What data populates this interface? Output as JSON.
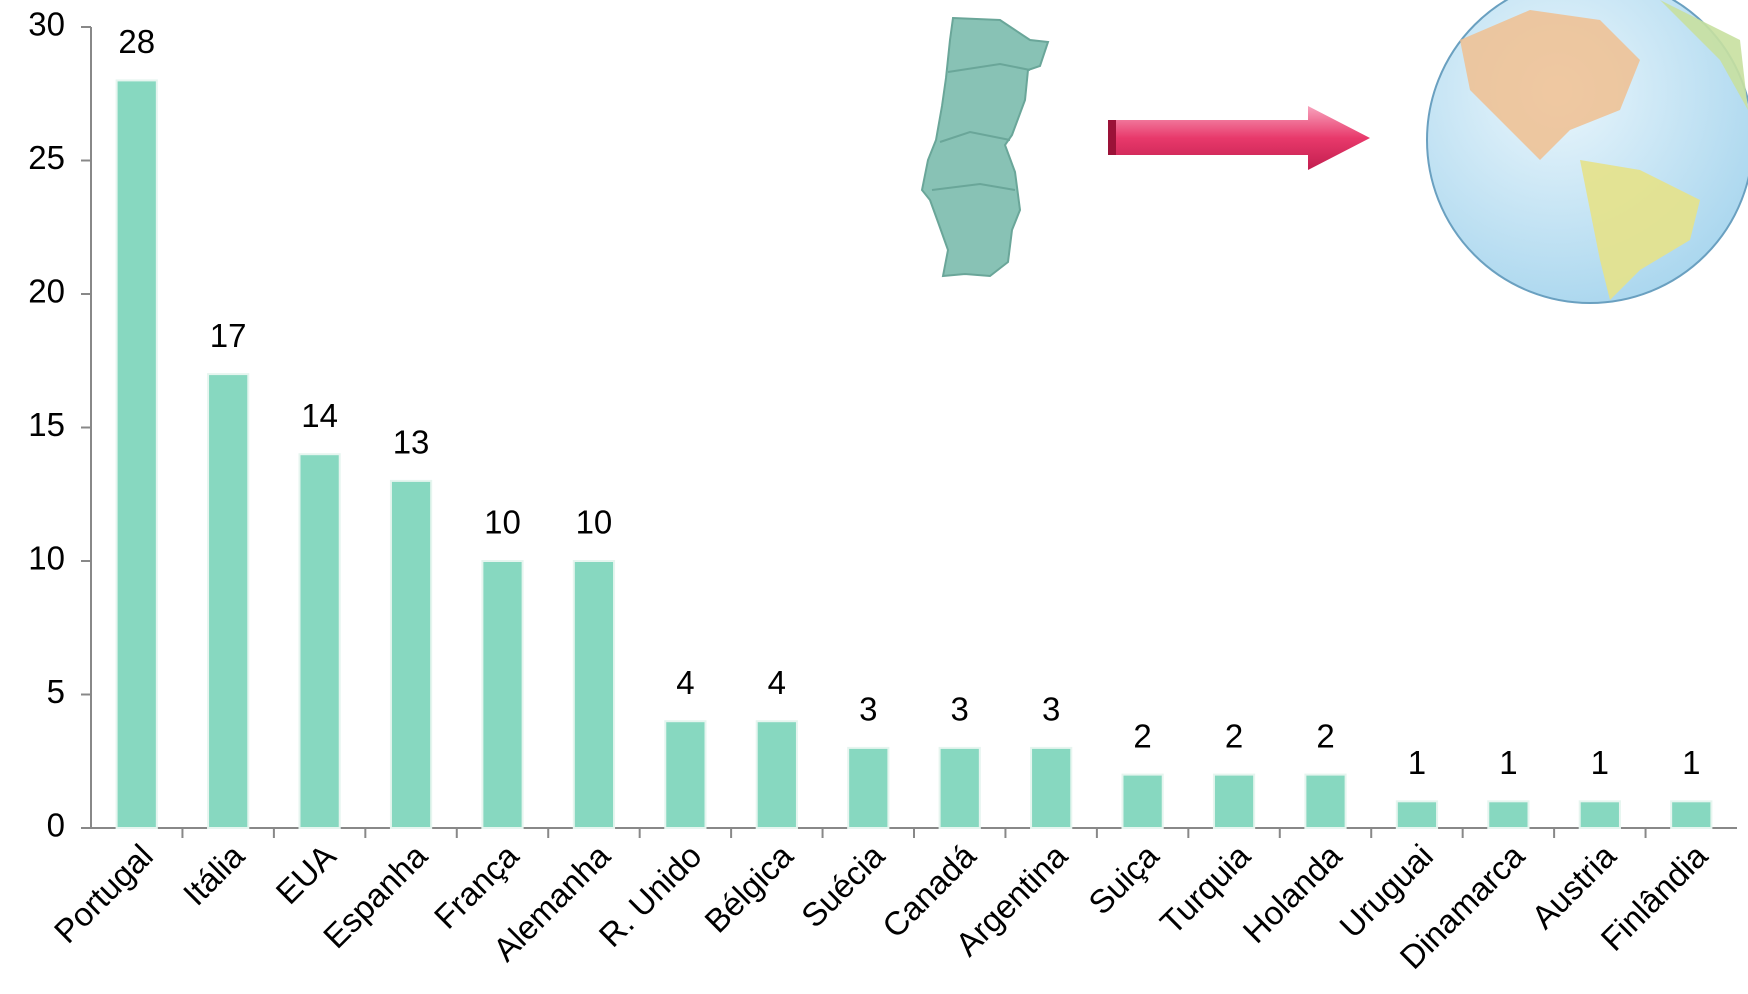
{
  "chart_data": {
    "type": "bar",
    "categories": [
      "Portugal",
      "Itália",
      "EUA",
      "Espanha",
      "França",
      "Alemanha",
      "R. Unido",
      "Bélgica",
      "Suécia",
      "Canadá",
      "Argentina",
      "Suiça",
      "Turquia",
      "Holanda",
      "Uruguai",
      "Dinamarca",
      "Austria",
      "Finlândia"
    ],
    "values": [
      28,
      17,
      14,
      13,
      10,
      10,
      4,
      4,
      3,
      3,
      3,
      2,
      2,
      2,
      1,
      1,
      1,
      1
    ],
    "color": "#87d8c0",
    "ylim": [
      0,
      30
    ],
    "yticks": [
      0,
      5,
      10,
      15,
      20,
      25,
      30
    ]
  }
}
